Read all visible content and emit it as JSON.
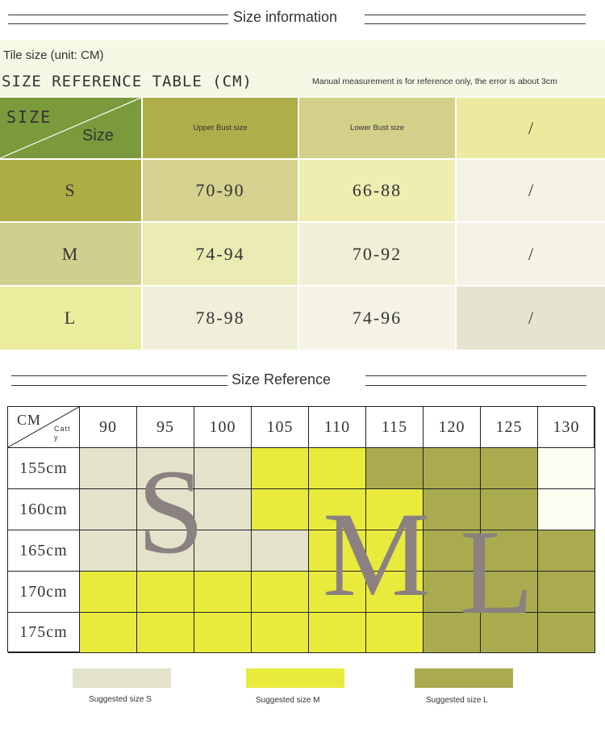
{
  "header": {
    "title": "Size information"
  },
  "info": {
    "tile_size": "Tile size (unit: CM)",
    "table_title": "SIZE REFERENCE TABLE (CM)",
    "note": "Manual measurement is for reference only, the error is about 3cm"
  },
  "size_table": {
    "corner_top": "SIZE",
    "corner_bottom": "Size",
    "columns": [
      "Upper Bust size",
      "Lower Bust size",
      "/"
    ],
    "rows": [
      {
        "size": "S",
        "upper": "70-90",
        "lower": "66-88",
        "extra": "/"
      },
      {
        "size": "M",
        "upper": "74-94",
        "lower": "70-92",
        "extra": "/"
      },
      {
        "size": "L",
        "upper": "78-98",
        "lower": "74-96",
        "extra": "/"
      }
    ]
  },
  "reference": {
    "title": "Size Reference",
    "corner_top": "CM",
    "corner_bottom": "Catty",
    "columns": [
      "90",
      "95",
      "100",
      "105",
      "110",
      "115",
      "120",
      "125",
      "130"
    ],
    "rows": [
      "155cm",
      "160cm",
      "165cm",
      "170cm",
      "175cm"
    ],
    "grid": [
      [
        "S",
        "S",
        "S",
        "M",
        "M",
        "L",
        "L",
        "L",
        "W"
      ],
      [
        "S",
        "S",
        "S",
        "M",
        "M",
        "M",
        "L",
        "L",
        "W"
      ],
      [
        "S",
        "S",
        "S",
        "S",
        "M",
        "M",
        "L",
        "L",
        "L"
      ],
      [
        "M",
        "M",
        "M",
        "M",
        "M",
        "M",
        "L",
        "L",
        "L"
      ],
      [
        "M",
        "M",
        "M",
        "M",
        "M",
        "M",
        "L",
        "L",
        "L"
      ]
    ],
    "letters": [
      "S",
      "M",
      "L"
    ]
  },
  "legend": [
    {
      "label": "Suggested size S",
      "color": "#e3e3cc"
    },
    {
      "label": "Suggested size M",
      "color": "#e8ea3c"
    },
    {
      "label": "Suggested size L",
      "color": "#aaab4f"
    }
  ],
  "colors": {
    "S": "#e3e3cc",
    "M": "#e8ea3c",
    "L": "#aaab4f",
    "W": "#fcfcf1"
  }
}
